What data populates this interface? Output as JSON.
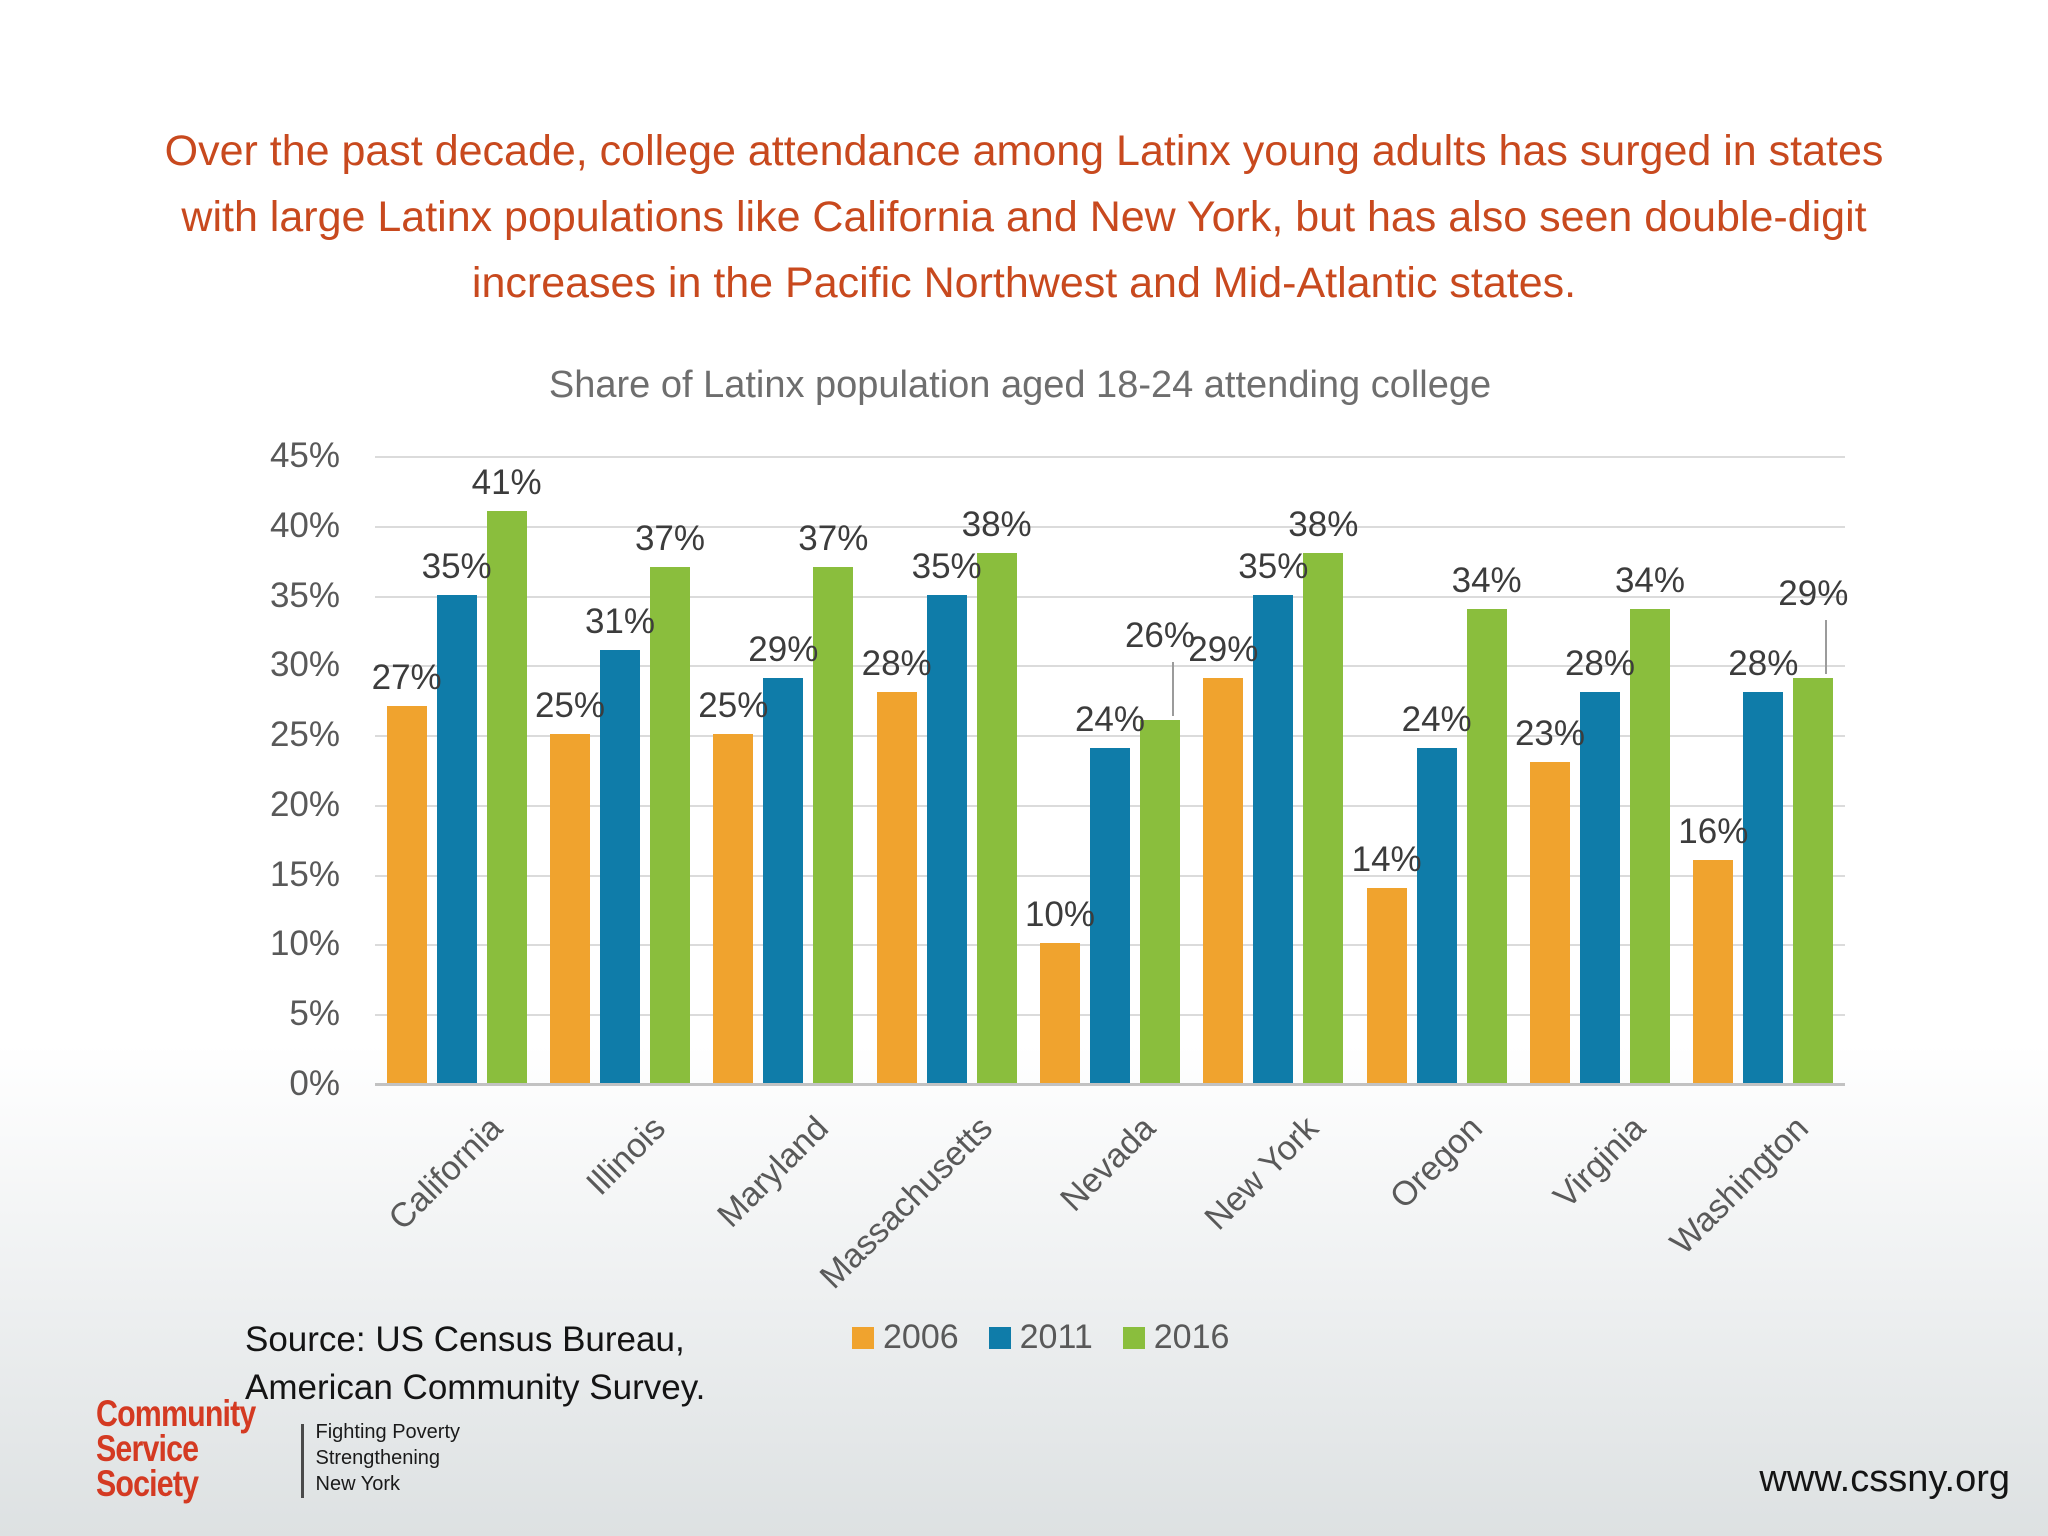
{
  "slide": {
    "headline_lines": [
      "Over the past decade, college attendance among Latinx young adults has surged in states",
      "with large Latinx populations like California and New York, but has also seen double-digit",
      "increases in the Pacific Northwest and Mid-Atlantic states."
    ],
    "headline_color": "#C8491E",
    "source_lines": [
      "Source: US Census Bureau,",
      "American Community Survey."
    ],
    "website": "www.cssny.org"
  },
  "logo": {
    "line1": "Community",
    "line2": "Service",
    "line3": "Society",
    "tagline1": "Fighting Poverty",
    "tagline2": "Strengthening",
    "tagline3": "New York",
    "color": "#D43A22"
  },
  "chart_data": {
    "type": "bar",
    "title": "Share of Latinx population aged 18-24 attending college",
    "xlabel": "",
    "ylabel": "",
    "categories": [
      "California",
      "Illinois",
      "Maryland",
      "Massachusetts",
      "Nevada",
      "New York",
      "Oregon",
      "Virginia",
      "Washington"
    ],
    "series": [
      {
        "name": "2006",
        "color": "#F0A32E",
        "values": [
          27,
          25,
          25,
          28,
          10,
          29,
          14,
          23,
          16
        ]
      },
      {
        "name": "2011",
        "color": "#0F7CA9",
        "values": [
          35,
          31,
          29,
          35,
          24,
          35,
          24,
          28,
          28
        ]
      },
      {
        "name": "2016",
        "color": "#8ABE3D",
        "values": [
          41,
          37,
          37,
          38,
          26,
          38,
          34,
          34,
          29
        ]
      }
    ],
    "ylim": [
      0,
      45
    ],
    "ytick_step": 5,
    "ytick_suffix": "%",
    "grid": true,
    "legend_position": "bottom",
    "data_labels": true,
    "callouts": [
      {
        "category": "Nevada",
        "series": "2016"
      },
      {
        "category": "Washington",
        "series": "2016"
      }
    ]
  }
}
